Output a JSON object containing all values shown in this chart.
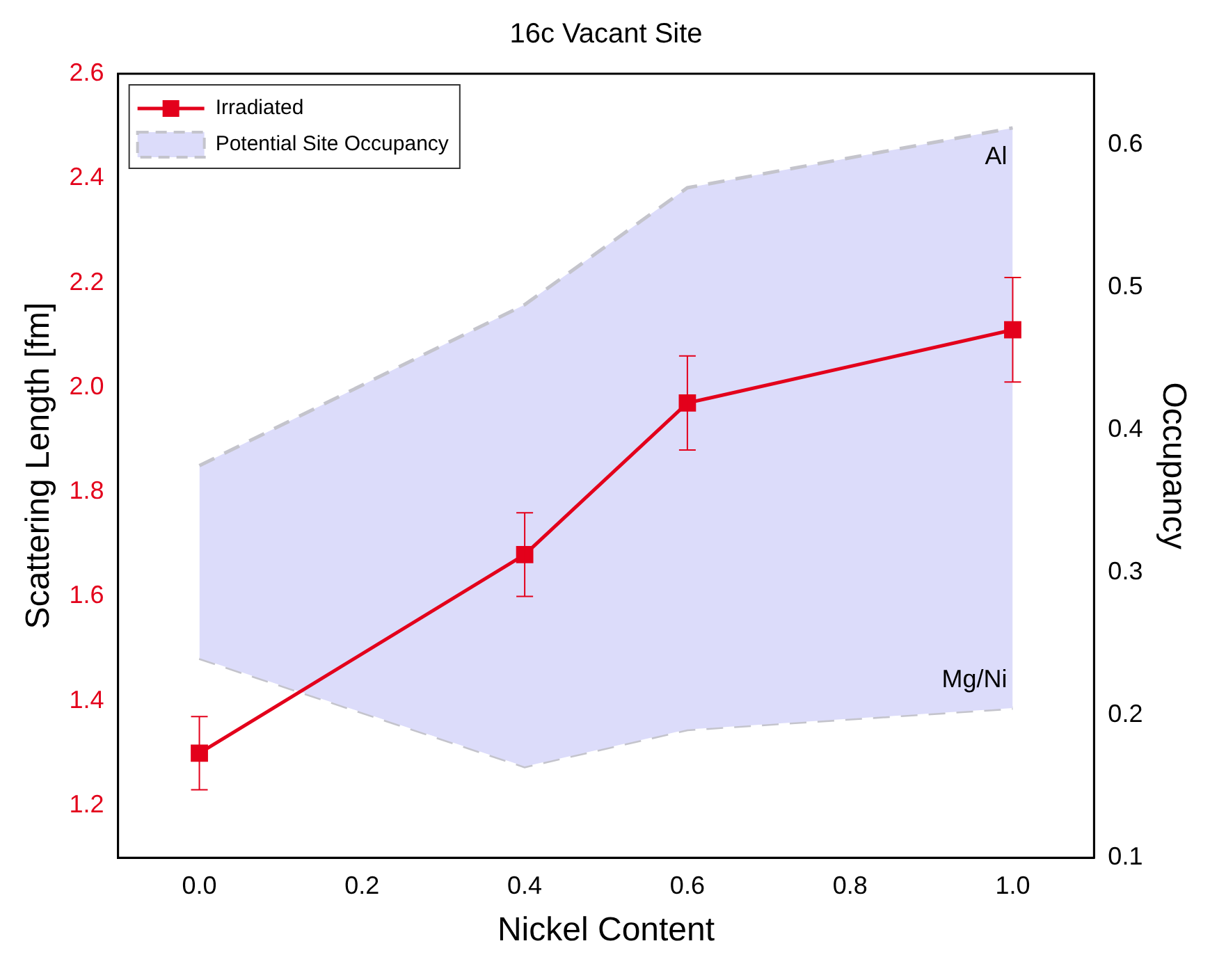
{
  "chart_data": {
    "type": "line",
    "title": "16c Vacant Site",
    "xlabel": "Nickel Content",
    "ylabel": "Scattering Length [fm]",
    "y2label": "Occupancy",
    "x": [
      0,
      0.4,
      0.6,
      1.0
    ],
    "series": [
      {
        "name": "Irradiated",
        "type": "line",
        "color": "#e3001b",
        "values": [
          1.3,
          1.68,
          1.97,
          2.11
        ],
        "errors": [
          0.07,
          0.08,
          0.09,
          0.1
        ],
        "marker": "square"
      },
      {
        "name": "Potential Site Occupancy",
        "type": "area",
        "axis": "y2",
        "color": "#dcdcfa",
        "values": [
          null,
          null,
          null,
          null
        ],
        "lower": [
          0.24,
          0.164,
          0.19,
          0.205
        ],
        "upper": [
          0.375,
          0.488,
          0.57,
          0.612
        ],
        "line_style": "dashed"
      }
    ],
    "xlim": [
      -0.1,
      1.1
    ],
    "xticks": [
      {
        "value": 0,
        "label": "0.0"
      },
      {
        "value": 0.2,
        "label": "0.2"
      },
      {
        "value": 0.4,
        "label": "0.4"
      },
      {
        "value": 0.6,
        "label": "0.6"
      },
      {
        "value": 0.8,
        "label": "0.8"
      },
      {
        "value": 1.0,
        "label": "1.0"
      }
    ],
    "ylim": [
      1.1,
      2.6
    ],
    "yticks": [
      {
        "value": 1.2,
        "label": "1.2"
      },
      {
        "value": 1.4,
        "label": "1.4"
      },
      {
        "value": 1.6,
        "label": "1.6"
      },
      {
        "value": 1.8,
        "label": "1.8"
      },
      {
        "value": 2.0,
        "label": "2.0"
      },
      {
        "value": 2.2,
        "label": "2.2"
      },
      {
        "value": 2.4,
        "label": "2.4"
      },
      {
        "value": 2.6,
        "label": "2.6"
      }
    ],
    "y2lim": [
      0.1,
      0.65
    ],
    "y2ticks": [
      0.1,
      0.2,
      0.3,
      0.4,
      0.5,
      0.6
    ],
    "annotations": [
      {
        "text": "Al",
        "x": 1.0,
        "y": 2.44
      },
      {
        "text": "Mg/Ni",
        "x": 1.0,
        "y": 1.44
      }
    ],
    "grid": false,
    "legend": "top left"
  }
}
